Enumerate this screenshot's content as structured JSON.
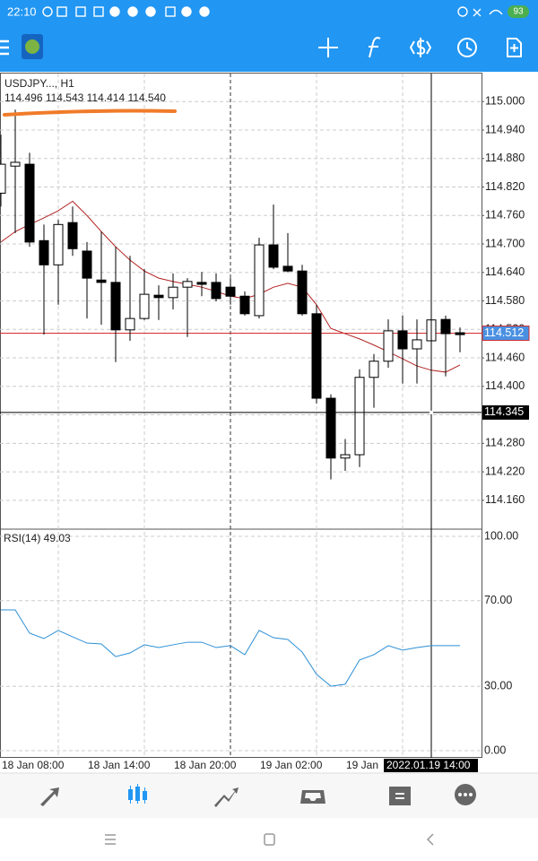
{
  "status_bar": {
    "time": "22:10",
    "battery": "93"
  },
  "chart_data": [
    {
      "type": "candlestick",
      "title": "USDJPY..., H1",
      "subtitle": "114.496 114.543 114.414 114.540",
      "categories": [
        "18 Jan 08:00",
        null,
        null,
        null,
        null,
        null,
        "18 Jan 14:00",
        null,
        null,
        null,
        null,
        null,
        "18 Jan 20:00",
        null,
        null,
        null,
        null,
        null,
        "19 Jan 02:00",
        null,
        null,
        null,
        null,
        null,
        "19 Jan",
        null,
        null,
        null,
        null,
        null,
        null,
        null,
        null
      ],
      "open": [
        114.807,
        114.864,
        114.868,
        114.707,
        114.656,
        114.745,
        114.685,
        114.624,
        114.619,
        114.519,
        114.543,
        114.592,
        114.587,
        114.609,
        114.619,
        114.619,
        114.609,
        114.59,
        114.549,
        114.698,
        114.653,
        114.643,
        114.553,
        114.375,
        114.249,
        114.256,
        114.419,
        114.453,
        114.517,
        114.479,
        114.496,
        114.541,
        114.513
      ],
      "high": [
        114.93,
        114.983,
        114.892,
        114.741,
        114.751,
        114.779,
        114.704,
        114.726,
        114.694,
        114.675,
        114.647,
        114.613,
        114.638,
        114.628,
        114.641,
        114.638,
        114.628,
        114.6,
        114.713,
        114.783,
        114.723,
        114.656,
        114.572,
        114.383,
        114.289,
        114.436,
        114.468,
        114.541,
        114.549,
        114.541,
        114.543,
        114.549,
        114.524
      ],
      "low": [
        114.779,
        114.723,
        114.694,
        114.509,
        114.572,
        114.675,
        114.543,
        114.53,
        114.451,
        114.496,
        114.54,
        114.54,
        114.562,
        114.504,
        114.59,
        114.579,
        114.572,
        114.549,
        114.543,
        114.647,
        114.64,
        114.549,
        114.364,
        114.204,
        114.222,
        114.23,
        114.355,
        114.439,
        114.406,
        114.406,
        114.414,
        114.421,
        114.472
      ],
      "close": [
        114.868,
        114.872,
        114.704,
        114.656,
        114.741,
        114.69,
        114.628,
        114.619,
        114.519,
        114.543,
        114.594,
        114.587,
        114.609,
        114.621,
        114.615,
        114.585,
        114.59,
        114.553,
        114.698,
        114.651,
        114.643,
        114.553,
        114.375,
        114.249,
        114.256,
        114.419,
        114.453,
        114.517,
        114.479,
        114.498,
        114.54,
        114.511,
        114.509
      ],
      "up_color": "#ffffff",
      "down_color": "#000000",
      "ma": {
        "color": "#b22222",
        "values": [
          114.704,
          114.726,
          114.741,
          114.755,
          114.77,
          114.79,
          114.76,
          114.726,
          114.694,
          114.666,
          114.643,
          114.628,
          114.621,
          114.615,
          114.609,
          114.6,
          114.59,
          114.585,
          114.594,
          114.609,
          114.617,
          114.609,
          114.572,
          114.522,
          114.511,
          114.5,
          114.487,
          114.473,
          114.458,
          114.443,
          114.434,
          114.43,
          114.445
        ]
      },
      "ylim": [
        114.103,
        115.059
      ],
      "yticks": [
        {
          "value": 115.0,
          "label": "115.000"
        },
        {
          "value": 114.94,
          "label": "114.940"
        },
        {
          "value": 114.88,
          "label": "114.880"
        },
        {
          "value": 114.82,
          "label": "114.820"
        },
        {
          "value": 114.76,
          "label": "114.760"
        },
        {
          "value": 114.7,
          "label": "114.700"
        },
        {
          "value": 114.64,
          "label": "114.640"
        },
        {
          "value": 114.58,
          "label": "114.580"
        },
        {
          "value": 114.52,
          "label": "114.520"
        },
        {
          "value": 114.46,
          "label": "114.460"
        },
        {
          "value": 114.4,
          "label": "114.400"
        },
        {
          "value": 114.34,
          "label": "114.340"
        },
        {
          "value": 114.28,
          "label": "114.280"
        },
        {
          "value": 114.22,
          "label": "114.220"
        },
        {
          "value": 114.16,
          "label": "114.160"
        }
      ],
      "bid_line": {
        "value": 114.512,
        "label": "114.512",
        "color": "#d32f2f",
        "tag_color": "#4a90e2"
      },
      "crosshair": {
        "y": {
          "value": 114.345,
          "label": "114.345"
        },
        "x_label": "2022.01.19 14:00"
      },
      "grid": true
    },
    {
      "type": "line",
      "title": "RSI(14) 49.03",
      "values": [
        65.7,
        65.7,
        54.8,
        52.3,
        56.1,
        53.1,
        50.2,
        49.8,
        43.9,
        45.6,
        49.4,
        48.1,
        49.4,
        50.6,
        50.6,
        48.1,
        49.0,
        44.8,
        56.1,
        52.7,
        51.9,
        46.0,
        35.6,
        30.1,
        31.0,
        42.3,
        44.8,
        49.0,
        46.9,
        48.1,
        49.03,
        49.0,
        49.0
      ],
      "color": "#2b8fd6",
      "ylim": [
        -3.35,
        103.35
      ],
      "yticks": [
        {
          "value": 100,
          "label": "100.00"
        },
        {
          "value": 70,
          "label": "70.00"
        },
        {
          "value": 30,
          "label": "30.00"
        },
        {
          "value": 0,
          "label": "0.00"
        }
      ],
      "grid": true
    }
  ]
}
